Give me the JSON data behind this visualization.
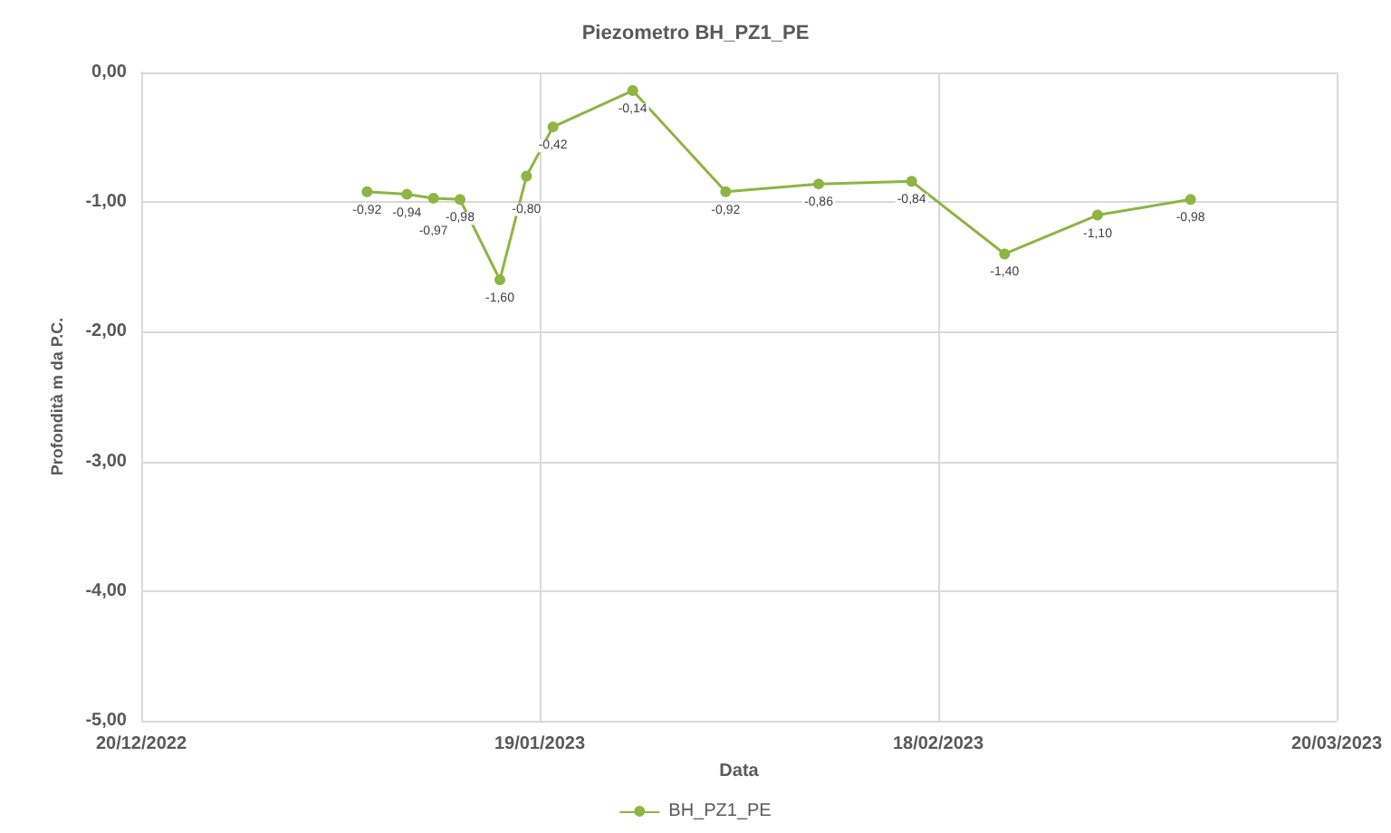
{
  "chart_data": {
    "type": "line",
    "title": "Piezometro BH_PZ1_PE",
    "xlabel": "Data",
    "ylabel": "Profondità m da P.C.",
    "x": [
      "2023-01-06",
      "2023-01-09",
      "2023-01-11",
      "2023-01-13",
      "2023-01-16",
      "2023-01-18",
      "2023-01-20",
      "2023-01-26",
      "2023-02-02",
      "2023-02-09",
      "2023-02-16",
      "2023-02-23",
      "2023-03-02",
      "2023-03-09"
    ],
    "series": [
      {
        "name": "BH_PZ1_PE",
        "color": "#8db543",
        "values": [
          -0.92,
          -0.94,
          -0.97,
          -0.98,
          -1.6,
          -0.8,
          -0.42,
          -0.14,
          -0.92,
          -0.86,
          -0.84,
          -1.4,
          -1.1,
          -0.98
        ],
        "value_labels": [
          "-0,92",
          "-0,94",
          "-0,97",
          "-0,98",
          "-1,60",
          "-0,80",
          "-0,42",
          "-0,14",
          "-0,92",
          "-0,86",
          "-0,84",
          "-1,40",
          "-1,10",
          "-0,98"
        ]
      }
    ],
    "xlim": [
      "2022-12-20",
      "2023-03-20"
    ],
    "xticks": [
      {
        "value": "2022-12-20",
        "label": "20/12/2022"
      },
      {
        "value": "2023-01-19",
        "label": "19/01/2023"
      },
      {
        "value": "2023-02-18",
        "label": "18/02/2023"
      },
      {
        "value": "2023-03-20",
        "label": "20/03/2023"
      }
    ],
    "ylim": [
      -5,
      0
    ],
    "yticks": [
      {
        "value": -5,
        "label": "-5,00"
      },
      {
        "value": -4,
        "label": "-4,00"
      },
      {
        "value": -3,
        "label": "-3,00"
      },
      {
        "value": -2,
        "label": "-2,00"
      },
      {
        "value": -1,
        "label": "-1,00"
      },
      {
        "value": 0,
        "label": "0,00"
      }
    ],
    "grid": true,
    "legend": "bottom",
    "marker": "circle",
    "line_style": "solid"
  }
}
